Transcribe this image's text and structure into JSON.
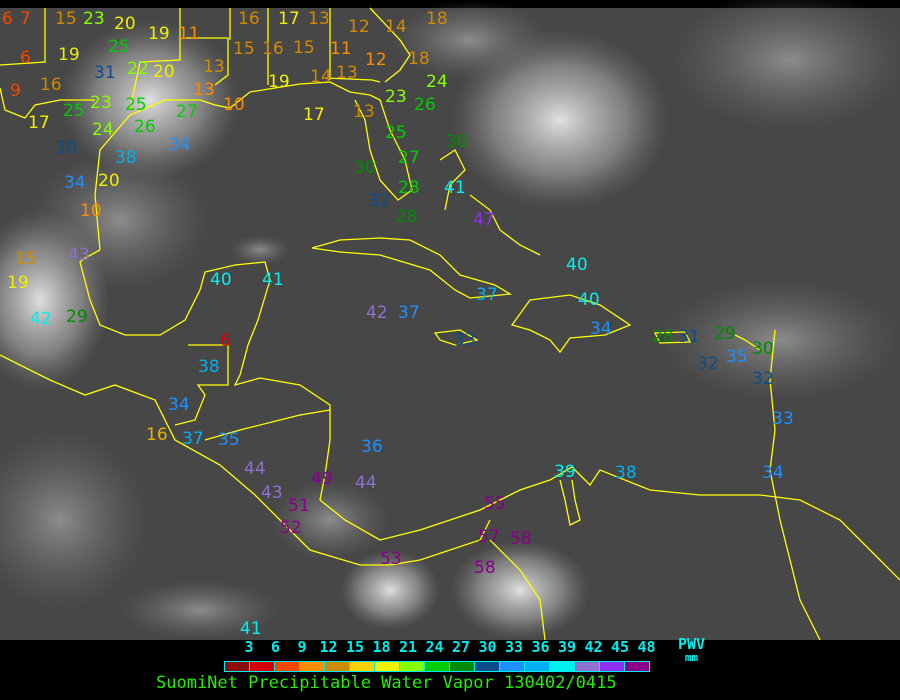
{
  "legend": {
    "ticks": [
      "3",
      "6",
      "9",
      "12",
      "15",
      "18",
      "21",
      "24",
      "27",
      "30",
      "33",
      "36",
      "39",
      "42",
      "45",
      "48"
    ],
    "colors": [
      "#8b0a0a",
      "#d40000",
      "#f04800",
      "#ff8c00",
      "#d08a00",
      "#ffd000",
      "#f0f000",
      "#88ff00",
      "#00cc00",
      "#008c00",
      "#0c4c8c",
      "#1e90ff",
      "#00b0f0",
      "#00f0f0",
      "#9070d0",
      "#9030f0",
      "#880088"
    ],
    "unit": "PWV",
    "unit_sub": "mm"
  },
  "caption": "SuomiNet Precipitable Water Vapor 130402/0415",
  "stations": [
    {
      "v": "6",
      "c": "#f04800"
    },
    {
      "v": "7",
      "c": "#f04800"
    },
    {
      "v": "6",
      "c": "#f04800"
    },
    {
      "v": "15",
      "c": "#d08a00"
    },
    {
      "v": "19",
      "c": "#f0f000"
    },
    {
      "v": "23",
      "c": "#88ff00"
    },
    {
      "v": "25",
      "c": "#00cc00"
    },
    {
      "v": "31",
      "c": "#0c4c8c"
    },
    {
      "v": "16",
      "c": "#d08a00"
    },
    {
      "v": "25",
      "c": "#00cc00"
    },
    {
      "v": "23",
      "c": "#88ff00"
    },
    {
      "v": "22",
      "c": "#88ff00"
    },
    {
      "v": "9",
      "c": "#f04800"
    },
    {
      "v": "17",
      "c": "#f0f000"
    },
    {
      "v": "25",
      "c": "#00cc00"
    },
    {
      "v": "20",
      "c": "#f0f000"
    },
    {
      "v": "19",
      "c": "#f0f000"
    },
    {
      "v": "20",
      "c": "#f0f000"
    },
    {
      "v": "11",
      "c": "#ff8c00"
    },
    {
      "v": "13",
      "c": "#d08a00"
    },
    {
      "v": "13",
      "c": "#ff8c00"
    },
    {
      "v": "15",
      "c": "#d08a00"
    },
    {
      "v": "16",
      "c": "#d08a00"
    },
    {
      "v": "10",
      "c": "#ff8c00"
    },
    {
      "v": "17",
      "c": "#f0f000"
    },
    {
      "v": "15",
      "c": "#d08a00"
    },
    {
      "v": "11",
      "c": "#ff8c00"
    },
    {
      "v": "14",
      "c": "#d08a00"
    },
    {
      "v": "12",
      "c": "#d08a00"
    },
    {
      "v": "14",
      "c": "#d08a00"
    },
    {
      "v": "18",
      "c": "#d08a00"
    },
    {
      "v": "18",
      "c": "#d08a00"
    },
    {
      "v": "16",
      "c": "#d08a00"
    },
    {
      "v": "13",
      "c": "#d08a00"
    },
    {
      "v": "13",
      "c": "#d08a00"
    },
    {
      "v": "12",
      "c": "#ff8c00"
    },
    {
      "v": "13",
      "c": "#d08a00"
    },
    {
      "v": "19",
      "c": "#f0f000"
    },
    {
      "v": "17",
      "c": "#f0f000"
    },
    {
      "v": "23",
      "c": "#88ff00"
    },
    {
      "v": "24",
      "c": "#88ff00"
    },
    {
      "v": "27",
      "c": "#00cc00"
    },
    {
      "v": "26",
      "c": "#00cc00"
    },
    {
      "v": "25",
      "c": "#00cc00"
    },
    {
      "v": "26",
      "c": "#00cc00"
    },
    {
      "v": "27",
      "c": "#00cc00"
    },
    {
      "v": "30",
      "c": "#008c00"
    },
    {
      "v": "30",
      "c": "#008c00"
    },
    {
      "v": "28",
      "c": "#00cc00"
    },
    {
      "v": "32",
      "c": "#0c4c8c"
    },
    {
      "v": "28",
      "c": "#008c00"
    },
    {
      "v": "30",
      "c": "#0c4c8c"
    },
    {
      "v": "24",
      "c": "#88ff00"
    },
    {
      "v": "38",
      "c": "#00b0f0"
    },
    {
      "v": "34",
      "c": "#1e90ff"
    },
    {
      "v": "34",
      "c": "#1e90ff"
    },
    {
      "v": "20",
      "c": "#f0f000"
    },
    {
      "v": "10",
      "c": "#ff8c00"
    },
    {
      "v": "15",
      "c": "#d08a00"
    },
    {
      "v": "19",
      "c": "#f0f000"
    },
    {
      "v": "42",
      "c": "#00f0f0"
    },
    {
      "v": "29",
      "c": "#008c00"
    },
    {
      "v": "43",
      "c": "#9070d0"
    },
    {
      "v": "40",
      "c": "#00f0f0"
    },
    {
      "v": "41",
      "c": "#00f0f0"
    },
    {
      "v": "42",
      "c": "#9070d0"
    },
    {
      "v": "37",
      "c": "#1e90ff"
    },
    {
      "v": "38",
      "c": "#00b0f0"
    },
    {
      "v": "6",
      "c": "#d40000"
    },
    {
      "v": "34",
      "c": "#1e90ff"
    },
    {
      "v": "16",
      "c": "#e8b400"
    },
    {
      "v": "37",
      "c": "#00b0f0"
    },
    {
      "v": "35",
      "c": "#1e90ff"
    },
    {
      "v": "36",
      "c": "#1e90ff"
    },
    {
      "v": "44",
      "c": "#9070d0"
    },
    {
      "v": "44",
      "c": "#9070d0"
    },
    {
      "v": "43",
      "c": "#9070d0"
    },
    {
      "v": "49",
      "c": "#880088"
    },
    {
      "v": "51",
      "c": "#880088"
    },
    {
      "v": "52",
      "c": "#880088"
    },
    {
      "v": "53",
      "c": "#880088"
    },
    {
      "v": "55",
      "c": "#880088"
    },
    {
      "v": "57",
      "c": "#880088"
    },
    {
      "v": "58",
      "c": "#880088"
    },
    {
      "v": "58",
      "c": "#880088"
    },
    {
      "v": "41",
      "c": "#00f0f0"
    },
    {
      "v": "39",
      "c": "#00f0f0"
    },
    {
      "v": "38",
      "c": "#00b0f0"
    },
    {
      "v": "34",
      "c": "#1e90ff"
    },
    {
      "v": "33",
      "c": "#1e90ff"
    },
    {
      "v": "41",
      "c": "#00f0f0"
    },
    {
      "v": "47",
      "c": "#9030f0"
    },
    {
      "v": "40",
      "c": "#00f0f0"
    },
    {
      "v": "37",
      "c": "#00b0f0"
    },
    {
      "v": "40",
      "c": "#00f0f0"
    },
    {
      "v": "34",
      "c": "#1e90ff"
    },
    {
      "v": "33",
      "c": "#0c4c8c"
    },
    {
      "v": "28",
      "c": "#008c00"
    },
    {
      "v": "31",
      "c": "#0c4c8c"
    },
    {
      "v": "29",
      "c": "#008c00"
    },
    {
      "v": "32",
      "c": "#0c4c8c"
    },
    {
      "v": "35",
      "c": "#1e90ff"
    },
    {
      "v": "30",
      "c": "#008c00"
    },
    {
      "v": "32",
      "c": "#0c4c8c"
    }
  ]
}
